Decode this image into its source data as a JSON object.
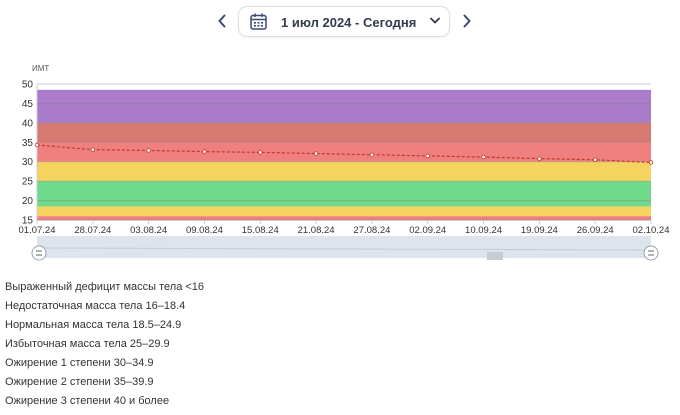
{
  "header": {
    "prev_label": "previous-period",
    "next_label": "next-period",
    "date_range": "1 июл 2024 - Сегодня"
  },
  "chart_data": {
    "type": "line",
    "ylabel": "ИМТ",
    "ylim": [
      15,
      50
    ],
    "yticks": [
      15,
      20,
      25,
      30,
      35,
      40,
      45,
      50
    ],
    "x_ticks": [
      "01.07.24",
      "28.07.24",
      "03.08.24",
      "09.08.24",
      "15.08.24",
      "21.08.24",
      "27.08.24",
      "02.09.24",
      "10.09.24",
      "19.09.24",
      "26.09.24",
      "02.10.24"
    ],
    "bands": [
      {
        "from": 15,
        "to": 16,
        "color": "#f08080"
      },
      {
        "from": 16,
        "to": 18.5,
        "color": "#f4d35e"
      },
      {
        "from": 18.5,
        "to": 25,
        "color": "#6fd98c"
      },
      {
        "from": 25,
        "to": 30,
        "color": "#f4d35e"
      },
      {
        "from": 30,
        "to": 35,
        "color": "#f08080"
      },
      {
        "from": 35,
        "to": 40,
        "color": "#d67a72"
      },
      {
        "from": 40,
        "to": 48.5,
        "color": "#a97bc8"
      }
    ],
    "series": [
      {
        "values": [
          34.3,
          33.1,
          32.9,
          32.6,
          32.4,
          32.1,
          31.8,
          31.5,
          31.2,
          30.8,
          30.5,
          29.8
        ],
        "color": "#c0392b"
      }
    ]
  },
  "legend": [
    "Выраженный дефицит массы тела <16",
    "Недостаточная масса тела 16–18.4",
    "Нормальная масса тела 18.5–24.9",
    "Избыточная масса тела 25–29.9",
    "Ожирение 1 степени 30–34.9",
    "Ожирение 2 степени 35–39.9",
    "Ожирение 3 степени 40 и более"
  ],
  "colors": {
    "accent": "#3a4a73",
    "axis_text": "#333"
  }
}
